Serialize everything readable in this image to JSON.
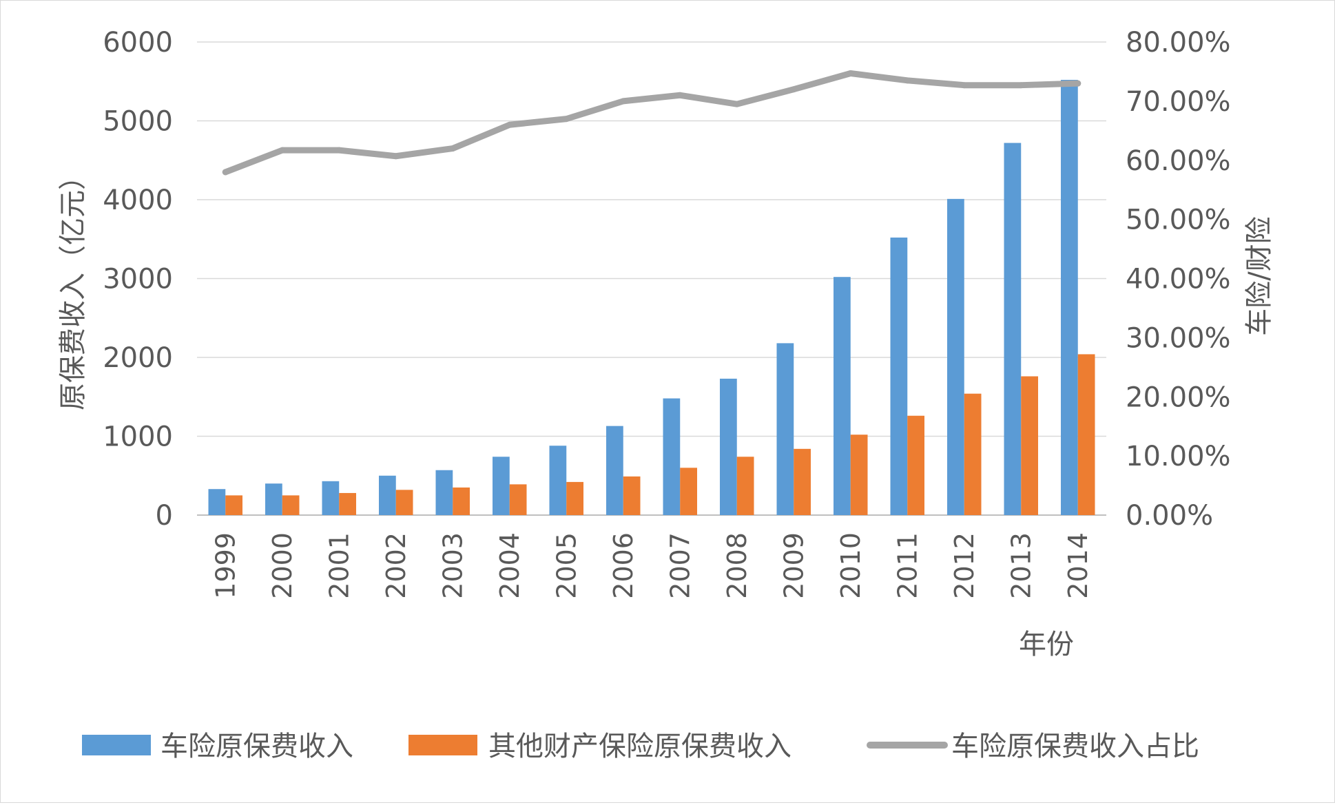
{
  "chart_data": {
    "type": "bar",
    "categories": [
      "1999",
      "2000",
      "2001",
      "2002",
      "2003",
      "2004",
      "2005",
      "2006",
      "2007",
      "2008",
      "2009",
      "2010",
      "2011",
      "2012",
      "2013",
      "2014"
    ],
    "series": [
      {
        "name": "车险原保费收入",
        "type": "bar",
        "axis": "left",
        "color": "#5b9bd5",
        "values": [
          330,
          400,
          430,
          500,
          570,
          740,
          880,
          1130,
          1480,
          1730,
          2180,
          3020,
          3520,
          4010,
          4720,
          5520
        ]
      },
      {
        "name": "其他财产保险原保费收入",
        "type": "bar",
        "axis": "left",
        "color": "#ed7d31",
        "values": [
          250,
          250,
          280,
          320,
          350,
          390,
          420,
          490,
          600,
          740,
          840,
          1020,
          1260,
          1540,
          1760,
          2040
        ]
      },
      {
        "name": "车险原保费收入占比",
        "type": "line",
        "axis": "right",
        "color": "#a5a5a5",
        "values": [
          0.58,
          0.617,
          0.617,
          0.607,
          0.62,
          0.66,
          0.67,
          0.7,
          0.71,
          0.695,
          0.72,
          0.747,
          0.735,
          0.727,
          0.727,
          0.73
        ]
      }
    ],
    "xlabel": "年份",
    "ylabel": "原保费收入（亿元）",
    "y2label": "车险/财险",
    "ylim": [
      0,
      6000
    ],
    "y2lim": [
      0,
      0.8
    ],
    "yticks": [
      "0",
      "1000",
      "2000",
      "3000",
      "4000",
      "5000",
      "6000"
    ],
    "y2ticks": [
      "0.00%",
      "10.00%",
      "20.00%",
      "30.00%",
      "40.00%",
      "50.00%",
      "60.00%",
      "70.00%",
      "80.00%"
    ],
    "grid": true,
    "legend_position": "bottom"
  }
}
